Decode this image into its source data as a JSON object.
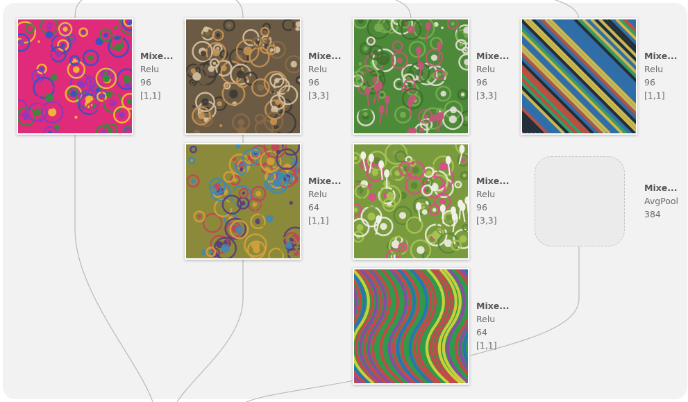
{
  "nodes": [
    {
      "id": "b0_1x1",
      "name": "Mixe...",
      "activation": "Relu",
      "channels": "96",
      "kernel": "[1,1]",
      "palette": [
        "#e02a7a",
        "#2f8f3a",
        "#f2c230",
        "#2a57c8",
        "#8a3bbf"
      ],
      "pattern": "swirl"
    },
    {
      "id": "b1_3x3",
      "name": "Mixe...",
      "activation": "Relu",
      "channels": "96",
      "kernel": "[3,3]",
      "palette": [
        "#6b5a44",
        "#c69454",
        "#3c3a36",
        "#d8c2a0",
        "#8a6c48"
      ],
      "pattern": "faces"
    },
    {
      "id": "b2_3x3a",
      "name": "Mixe...",
      "activation": "Relu",
      "channels": "96",
      "kernel": "[3,3]",
      "palette": [
        "#4c8a3a",
        "#79ad4f",
        "#3e6e2c",
        "#c25676",
        "#e8e0d8"
      ],
      "pattern": "stalks"
    },
    {
      "id": "b3_1x1",
      "name": "Mixe...",
      "activation": "Relu",
      "channels": "96",
      "kernel": "[1,1]",
      "palette": [
        "#2f6fa8",
        "#d84a2a",
        "#3aa35a",
        "#e8c43a",
        "#222222"
      ],
      "pattern": "stripes"
    },
    {
      "id": "b1_1x1",
      "name": "Mixe...",
      "activation": "Relu",
      "channels": "64",
      "kernel": "[1,1]",
      "palette": [
        "#8a8a3a",
        "#c2445a",
        "#3e88b8",
        "#d6a03a",
        "#5a3a7a"
      ],
      "pattern": "eyes"
    },
    {
      "id": "b2_3x3b",
      "name": "Mixe...",
      "activation": "Relu",
      "channels": "96",
      "kernel": "[3,3]",
      "palette": [
        "#7a9a3e",
        "#58863a",
        "#e04a8a",
        "#f0f0e6",
        "#a7c552"
      ],
      "pattern": "stars"
    },
    {
      "id": "pool",
      "name": "Mixe...",
      "activation": "AvgPool",
      "channels": "384"
    },
    {
      "id": "b2_1x1",
      "name": "Mixe...",
      "activation": "Relu",
      "channels": "64",
      "kernel": "[1,1]",
      "palette": [
        "#2e9a4a",
        "#9c3cb8",
        "#e8d83a",
        "#2a6ad0",
        "#e03a4a"
      ],
      "pattern": "waves"
    }
  ]
}
